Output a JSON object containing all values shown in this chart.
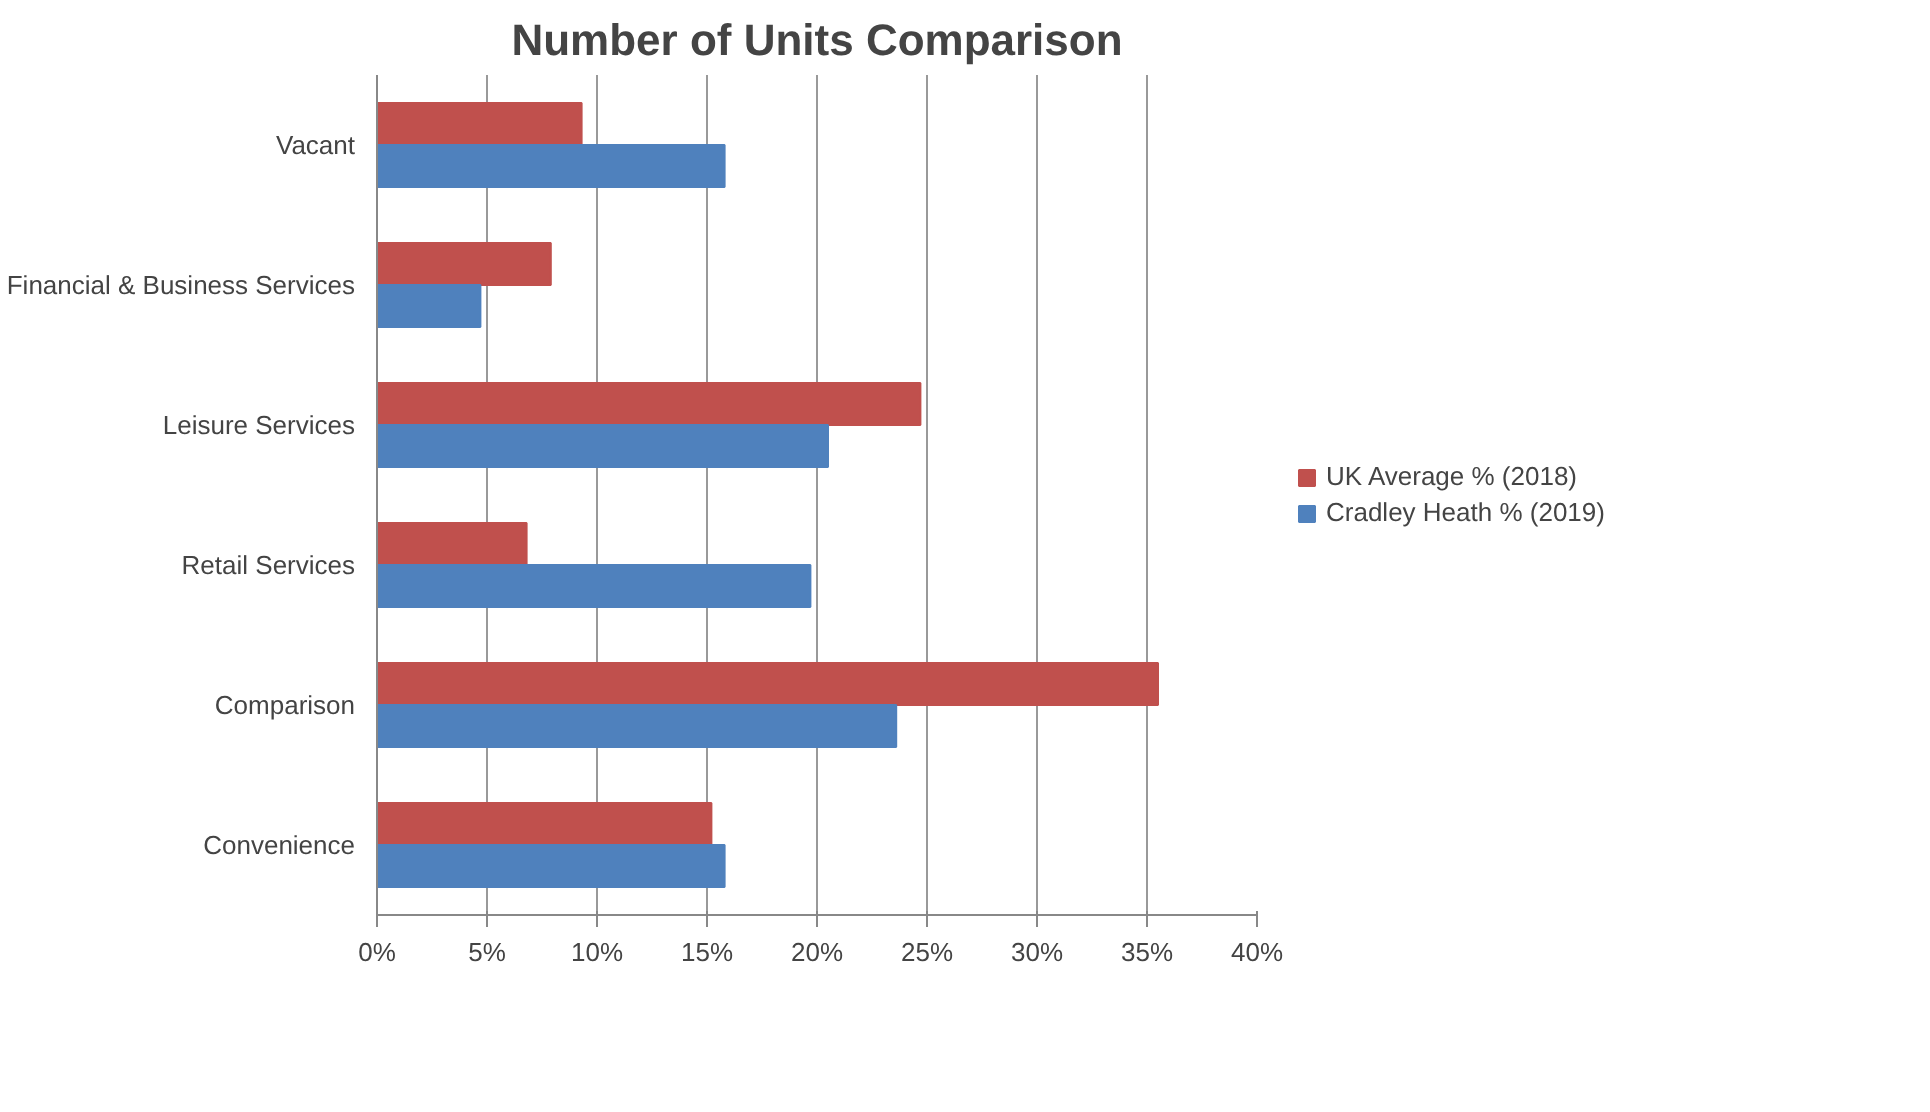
{
  "chart_data": {
    "type": "bar",
    "orientation": "horizontal",
    "title": "Number of Units Comparison",
    "categories": [
      "Vacant",
      "Financial & Business Services",
      "Leisure Services",
      "Retail Services",
      "Comparison",
      "Convenience"
    ],
    "series": [
      {
        "name": "UK Average % (2018)",
        "color": "#c0504d",
        "values": [
          9.3,
          7.9,
          24.7,
          6.8,
          35.5,
          15.2
        ]
      },
      {
        "name": "Cradley Heath % (2019)",
        "color": "#4f81bd",
        "values": [
          15.8,
          4.7,
          20.5,
          19.7,
          23.6,
          15.8
        ]
      }
    ],
    "xlim": [
      0,
      40
    ],
    "xticks": [
      {
        "value": 0,
        "label": "0%"
      },
      {
        "value": 5,
        "label": "5%"
      },
      {
        "value": 10,
        "label": "10%"
      },
      {
        "value": 15,
        "label": "15%"
      },
      {
        "value": 20,
        "label": "20%"
      },
      {
        "value": 25,
        "label": "25%"
      },
      {
        "value": 30,
        "label": "30%"
      },
      {
        "value": 35,
        "label": "35%"
      },
      {
        "value": 40,
        "label": "40%"
      }
    ],
    "grid": "x",
    "legend": "right"
  }
}
